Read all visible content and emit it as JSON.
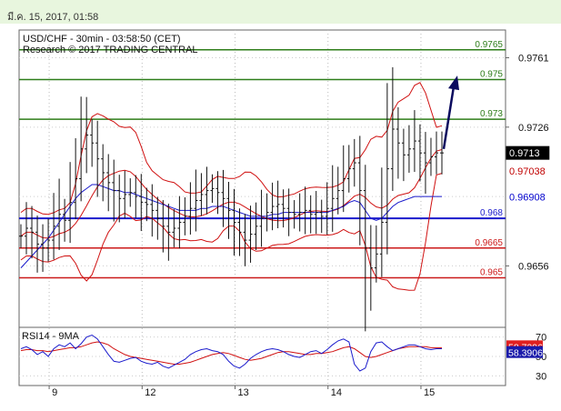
{
  "header": {
    "date": "มี.ค. 15, 2017, 01:58"
  },
  "chart_data": {
    "type": "line",
    "title": "USD/CHF - 30min - 03:58:50 (CET)",
    "subtitle": "Research © 2017 TRADING CENTRAL",
    "ylim": [
      0.9625,
      0.9775
    ],
    "y_ticks": [
      "0.9761",
      "0.9726",
      "0.9691",
      "0.9656"
    ],
    "x_ticks": [
      {
        "label": "9",
        "i": 6
      },
      {
        "label": "12",
        "i": 23
      },
      {
        "label": "13",
        "i": 40
      },
      {
        "label": "14",
        "i": 57
      },
      {
        "label": "15",
        "i": 74
      }
    ],
    "n_bars": 78,
    "current_price": "0.9713",
    "price_labels": [
      {
        "text": "0.9713",
        "value": 0.9713,
        "bg": "#000000",
        "fg": "#ffffff"
      },
      {
        "text": "0.97038",
        "value": 0.97038,
        "bg": "#ffffff",
        "fg": "#c00000"
      },
      {
        "text": "0.96908",
        "value": 0.96908,
        "bg": "#ffffff",
        "fg": "#0000cc"
      }
    ],
    "levels": [
      {
        "label": "0.9765",
        "value": 0.9765,
        "color": "#2e7d1a"
      },
      {
        "label": "0.975",
        "value": 0.975,
        "color": "#2e7d1a"
      },
      {
        "label": "0.973",
        "value": 0.973,
        "color": "#2e7d1a"
      },
      {
        "label": "0.968",
        "value": 0.968,
        "color": "#1a1acc"
      },
      {
        "label": "0.9665",
        "value": 0.9665,
        "color": "#cc1a1a"
      },
      {
        "label": "0.965",
        "value": 0.965,
        "color": "#cc1a1a"
      }
    ],
    "series": [
      {
        "values": [
          0.9671,
          0.9675,
          0.9673,
          0.9667,
          0.9665,
          0.9669,
          0.9676,
          0.9682,
          0.9679,
          0.9688,
          0.97,
          0.9715,
          0.9722,
          0.9718,
          0.971,
          0.9703,
          0.9698,
          0.9694,
          0.969,
          0.9692,
          0.9693,
          0.9691,
          0.9688,
          0.9687,
          0.9684,
          0.968,
          0.9676,
          0.9673,
          0.9675,
          0.9678,
          0.9681,
          0.9685,
          0.9689,
          0.9692,
          0.9694,
          0.9695,
          0.9693,
          0.969,
          0.9684,
          0.9678,
          0.9673,
          0.9669,
          0.9672,
          0.9676,
          0.968,
          0.9683,
          0.9686,
          0.9687,
          0.9685,
          0.9683,
          0.9682,
          0.9683,
          0.9684,
          0.9682,
          0.9683,
          0.9681,
          0.9685,
          0.969,
          0.9694,
          0.97,
          0.9705,
          0.9708,
          0.9694,
          0.9665,
          0.9655,
          0.9662,
          0.9678,
          0.9705,
          0.9725,
          0.9718,
          0.9712,
          0.9715,
          0.9719,
          0.9713,
          0.9708,
          0.9711,
          0.9713,
          0.9713
        ]
      }
    ],
    "ma_blue": [
      0.9655,
      0.9658,
      0.9661,
      0.9664,
      0.9667,
      0.967,
      0.9674,
      0.9678,
      0.9682,
      0.9686,
      0.969,
      0.9693,
      0.9695,
      0.9697,
      0.9697,
      0.9696,
      0.9695,
      0.9694,
      0.9694,
      0.9693,
      0.9693,
      0.9692,
      0.9691,
      0.969,
      0.9689,
      0.9688,
      0.9687,
      0.9686,
      0.9685,
      0.9684,
      0.9684,
      0.9684,
      0.9684,
      0.9685,
      0.9685,
      0.9686,
      0.9686,
      0.9686,
      0.9685,
      0.9684,
      0.9683,
      0.9682,
      0.9681,
      0.9681,
      0.9681,
      0.9681,
      0.9682,
      0.9682,
      0.9683,
      0.9683,
      0.9683,
      0.9683,
      0.9683,
      0.9683,
      0.9683,
      0.9683,
      0.9683,
      0.9684,
      0.9685,
      0.9686,
      0.9688,
      0.9689,
      0.9688,
      0.9684,
      0.968,
      0.9679,
      0.968,
      0.9683,
      0.9686,
      0.9688,
      0.9689,
      0.969,
      0.9691,
      0.9691,
      0.9691,
      0.9691,
      0.9691,
      0.9691
    ],
    "rsi": {
      "title": "RSI14 - 9MA",
      "ticks": [
        "70",
        "50",
        "30"
      ],
      "ylim": [
        20,
        80
      ],
      "rsi_label": "58.3906",
      "ma_label": "58.7296",
      "rsi_values": [
        58,
        60,
        57,
        52,
        55,
        50,
        58,
        62,
        60,
        64,
        58,
        63,
        70,
        72,
        68,
        60,
        52,
        45,
        44,
        46,
        48,
        49,
        45,
        43,
        42,
        44,
        40,
        38,
        41,
        44,
        47,
        52,
        55,
        57,
        58,
        56,
        55,
        52,
        45,
        40,
        38,
        42,
        48,
        52,
        55,
        57,
        58,
        57,
        55,
        52,
        50,
        49,
        52,
        55,
        56,
        53,
        57,
        62,
        66,
        68,
        65,
        42,
        35,
        38,
        55,
        64,
        65,
        60,
        56,
        58,
        60,
        62,
        62,
        60,
        58,
        57,
        58,
        58
      ],
      "ma_values": [
        56,
        57,
        57,
        56,
        56,
        55,
        56,
        57,
        58,
        59,
        59,
        60,
        62,
        64,
        65,
        64,
        62,
        58,
        55,
        52,
        50,
        49,
        48,
        47,
        46,
        45,
        44,
        43,
        42,
        42,
        43,
        44,
        46,
        48,
        50,
        52,
        53,
        54,
        53,
        51,
        49,
        47,
        46,
        47,
        48,
        50,
        52,
        54,
        55,
        55,
        54,
        53,
        52,
        52,
        53,
        53,
        54,
        55,
        57,
        59,
        60,
        58,
        54,
        50,
        49,
        50,
        52,
        54,
        56,
        58,
        59,
        60,
        60,
        60,
        60,
        59,
        59,
        59
      ]
    }
  }
}
